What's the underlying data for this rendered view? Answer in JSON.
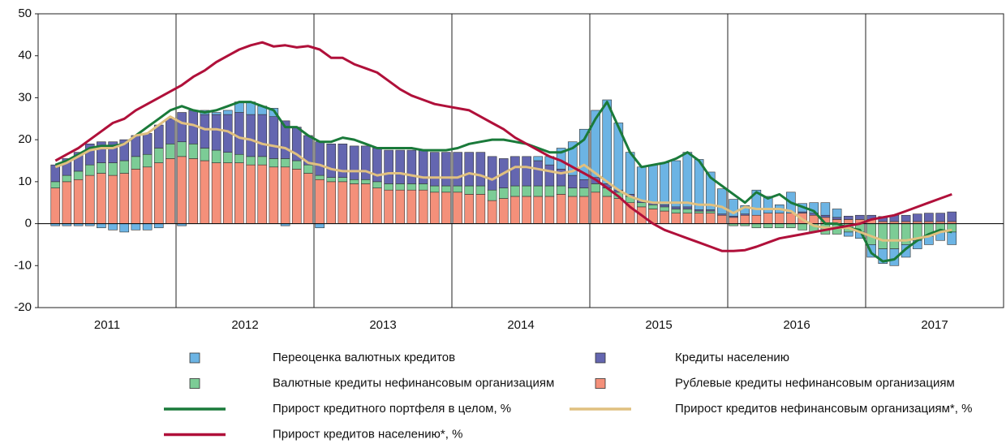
{
  "chart_data": {
    "type": "bar",
    "x": [
      2011.125,
      2011.208,
      2011.292,
      2011.375,
      2011.458,
      2011.542,
      2011.625,
      2011.708,
      2011.792,
      2011.875,
      2011.958,
      2012.042,
      2012.125,
      2012.208,
      2012.292,
      2012.375,
      2012.458,
      2012.542,
      2012.625,
      2012.708,
      2012.792,
      2012.875,
      2012.958,
      2013.042,
      2013.125,
      2013.208,
      2013.292,
      2013.375,
      2013.458,
      2013.542,
      2013.625,
      2013.708,
      2013.792,
      2013.875,
      2013.958,
      2014.042,
      2014.125,
      2014.208,
      2014.292,
      2014.375,
      2014.458,
      2014.542,
      2014.625,
      2014.708,
      2014.792,
      2014.875,
      2014.958,
      2015.042,
      2015.125,
      2015.208,
      2015.292,
      2015.375,
      2015.458,
      2015.542,
      2015.625,
      2015.708,
      2015.792,
      2015.875,
      2015.958,
      2016.042,
      2016.125,
      2016.208,
      2016.292,
      2016.375,
      2016.458,
      2016.542,
      2016.625,
      2016.708,
      2016.792,
      2016.875,
      2016.958,
      2017.042,
      2017.125,
      2017.208,
      2017.292,
      2017.375,
      2017.458,
      2017.542,
      2017.625
    ],
    "series": [
      {
        "name": "Переоценка валютных кредитов",
        "color": "#6cb4e4",
        "values": [
          -0.5,
          -0.5,
          -0.5,
          -0.5,
          -1,
          -1.5,
          -2,
          -1.5,
          -1.5,
          -1,
          0,
          -0.5,
          0,
          1,
          0.5,
          1,
          2.5,
          3,
          2,
          2,
          -0.5,
          0,
          0,
          -1,
          0,
          0,
          0,
          0,
          0,
          0,
          0,
          0,
          0,
          0,
          0,
          0,
          0,
          0,
          0,
          0,
          0,
          0,
          1,
          2,
          5,
          8,
          12,
          16,
          20,
          16,
          10,
          8,
          9,
          10,
          11,
          13,
          12,
          9,
          6,
          4,
          2,
          6,
          4,
          2,
          5,
          2,
          2.5,
          3,
          2,
          -1,
          -1.5,
          -3,
          -3.5,
          -4,
          -3,
          -2,
          -2,
          -2,
          -3
        ]
      },
      {
        "name": "Кредиты населению",
        "color": "#6466b0",
        "values": [
          4,
          4,
          4.5,
          5,
          5,
          5,
          5,
          5,
          5,
          5.5,
          6,
          7,
          8,
          8,
          8.5,
          9,
          10,
          10,
          10,
          10,
          9,
          8,
          7,
          8,
          8,
          8,
          8,
          8,
          8,
          8,
          8,
          8,
          8,
          8,
          8,
          8,
          8,
          8,
          8,
          7,
          7,
          7,
          6,
          5,
          4,
          3,
          2,
          1.5,
          1,
          0.5,
          0.5,
          0.5,
          0.5,
          0.5,
          0.5,
          0.5,
          0.3,
          0.3,
          0.3,
          0.3,
          0.3,
          0,
          0,
          0,
          0,
          0.3,
          0.5,
          0.5,
          0.5,
          0.8,
          1,
          1,
          1.2,
          1.5,
          1.5,
          1.8,
          2,
          2,
          2.3
        ]
      },
      {
        "name": "Валютные кредиты нефинансовым организациям",
        "color": "#7ccc96",
        "values": [
          1.5,
          1.5,
          2,
          2.5,
          2.5,
          3,
          3,
          3,
          3,
          3.5,
          3.5,
          3.5,
          3.5,
          3,
          3,
          2.5,
          2,
          2,
          2,
          2,
          2,
          2,
          2,
          1,
          1,
          1,
          1,
          1,
          1.5,
          1.5,
          1.5,
          1.5,
          1.5,
          1.5,
          1.5,
          1.5,
          2,
          2,
          2.5,
          2.5,
          2.5,
          2.5,
          2.5,
          2.5,
          2,
          2,
          2,
          2,
          2,
          1.5,
          1.5,
          1,
          1,
          1,
          1,
          1,
          0.5,
          0.5,
          0,
          -0.5,
          -0.5,
          -1,
          -1,
          -1,
          -1,
          -1.5,
          -2,
          -2.5,
          -2.5,
          -2,
          -2,
          -5,
          -6,
          -6,
          -5,
          -4,
          -3,
          -2,
          -2
        ]
      },
      {
        "name": "Рублевые кредиты нефинансовым организациям",
        "color": "#f4907a",
        "values": [
          8.5,
          10,
          10.5,
          11.5,
          12,
          11.5,
          12,
          13,
          13.5,
          14.5,
          15.5,
          16,
          15.5,
          15,
          14.5,
          14.5,
          14.5,
          14,
          14,
          13.5,
          13.5,
          13,
          12,
          10.5,
          10,
          10,
          9.5,
          9.5,
          8.5,
          8,
          8,
          8,
          8,
          7.5,
          7.5,
          7.5,
          7,
          7,
          5.5,
          6,
          6.5,
          6.5,
          6.5,
          6.5,
          7,
          6.5,
          6.5,
          7.5,
          6.5,
          6,
          5,
          4,
          3.5,
          3,
          2.5,
          2.5,
          2.5,
          2.5,
          2,
          1.5,
          2,
          2,
          2.5,
          2.5,
          2.5,
          2.5,
          2,
          1.5,
          1,
          1,
          1,
          1,
          0.5,
          0.5,
          0.5,
          0.5,
          0.5,
          0.5,
          0.5
        ]
      },
      {
        "name": "Прирост кредитного портфеля в целом, %",
        "color": "#1a7a3a",
        "type": "line",
        "values": [
          14,
          15,
          16.5,
          18,
          18.5,
          18.5,
          19,
          21,
          23,
          25,
          27,
          28,
          27,
          26.5,
          27,
          28,
          29,
          29,
          28,
          27,
          23,
          23,
          21,
          19.5,
          19.5,
          20.5,
          20,
          19,
          18,
          18,
          18,
          18,
          17.5,
          17.5,
          17.5,
          18,
          19,
          19.5,
          20,
          20,
          19.5,
          19,
          18,
          17,
          17,
          18,
          20,
          25,
          29,
          23,
          17,
          13.5,
          14,
          14.5,
          15.5,
          17,
          15,
          11,
          9,
          7,
          5,
          7.5,
          6,
          7,
          5,
          4,
          3,
          0,
          0,
          -1,
          -1.5,
          -7,
          -9,
          -8.5,
          -6,
          -4,
          -2.5,
          -1.5,
          -2
        ]
      },
      {
        "name": "Прирост кредитов нефинансовым организациям*, %",
        "color": "#e0c080",
        "type": "line",
        "values": [
          13.5,
          14.5,
          16,
          17.5,
          18,
          18,
          19,
          21,
          21.5,
          23.5,
          25.5,
          24,
          23.5,
          22.5,
          22.5,
          22,
          20.5,
          20,
          19,
          18.5,
          18,
          16.5,
          14.5,
          14,
          13,
          12.5,
          12.5,
          12.5,
          11.5,
          12,
          12,
          11.5,
          11,
          11,
          11,
          11,
          12,
          11.5,
          10.5,
          12,
          13.5,
          13.5,
          13,
          12.5,
          12,
          12.5,
          14,
          12,
          10,
          8,
          6.5,
          5.5,
          5,
          5,
          5,
          5,
          4.5,
          4.5,
          4,
          2.5,
          4,
          3.5,
          3.5,
          3.5,
          3,
          1,
          -0.5,
          -1,
          -1,
          -1,
          -2,
          -3,
          -4,
          -4,
          -4,
          -3.5,
          -3,
          -2,
          -1.5
        ]
      },
      {
        "name": "Прирост кредитов населению*, %",
        "color": "#b0103a",
        "type": "line",
        "values": [
          15,
          16.5,
          18,
          20,
          22,
          24,
          25,
          27,
          28.5,
          30,
          31.5,
          33,
          35,
          36.5,
          38.5,
          40,
          41.5,
          42.5,
          43.2,
          42.2,
          42.5,
          42,
          42.3,
          41.5,
          39.5,
          39.5,
          38,
          37,
          36,
          34,
          32,
          30.5,
          29.5,
          28.5,
          28,
          27.5,
          27,
          25.5,
          24,
          22.5,
          20.5,
          19,
          17.5,
          16,
          15,
          13.5,
          12,
          10.5,
          8.5,
          6.5,
          4,
          2,
          0,
          -1.5,
          -2.5,
          -3.5,
          -4.5,
          -5.5,
          -6.5,
          -6.5,
          -6.3,
          -5.5,
          -4.5,
          -3.5,
          -3,
          -2.5,
          -2,
          -1.5,
          -1,
          -0.5,
          0,
          1,
          1.5,
          2,
          3,
          4,
          5,
          6,
          7
        ]
      }
    ],
    "xlim": [
      2011,
      2018
    ],
    "xticks": [
      {
        "value": 2011.5,
        "label": "2011"
      },
      {
        "value": 2012.5,
        "label": "2012"
      },
      {
        "value": 2013.5,
        "label": "2013"
      },
      {
        "value": 2014.5,
        "label": "2014"
      },
      {
        "value": 2015.5,
        "label": "2015"
      },
      {
        "value": 2016.5,
        "label": "2016"
      },
      {
        "value": 2017.5,
        "label": "2017"
      }
    ],
    "xgrid": [
      2012,
      2013,
      2014,
      2015,
      2016,
      2017
    ],
    "ylim": [
      -20,
      50
    ],
    "yticks": [
      -20,
      -10,
      0,
      10,
      20,
      30,
      40,
      50
    ]
  }
}
